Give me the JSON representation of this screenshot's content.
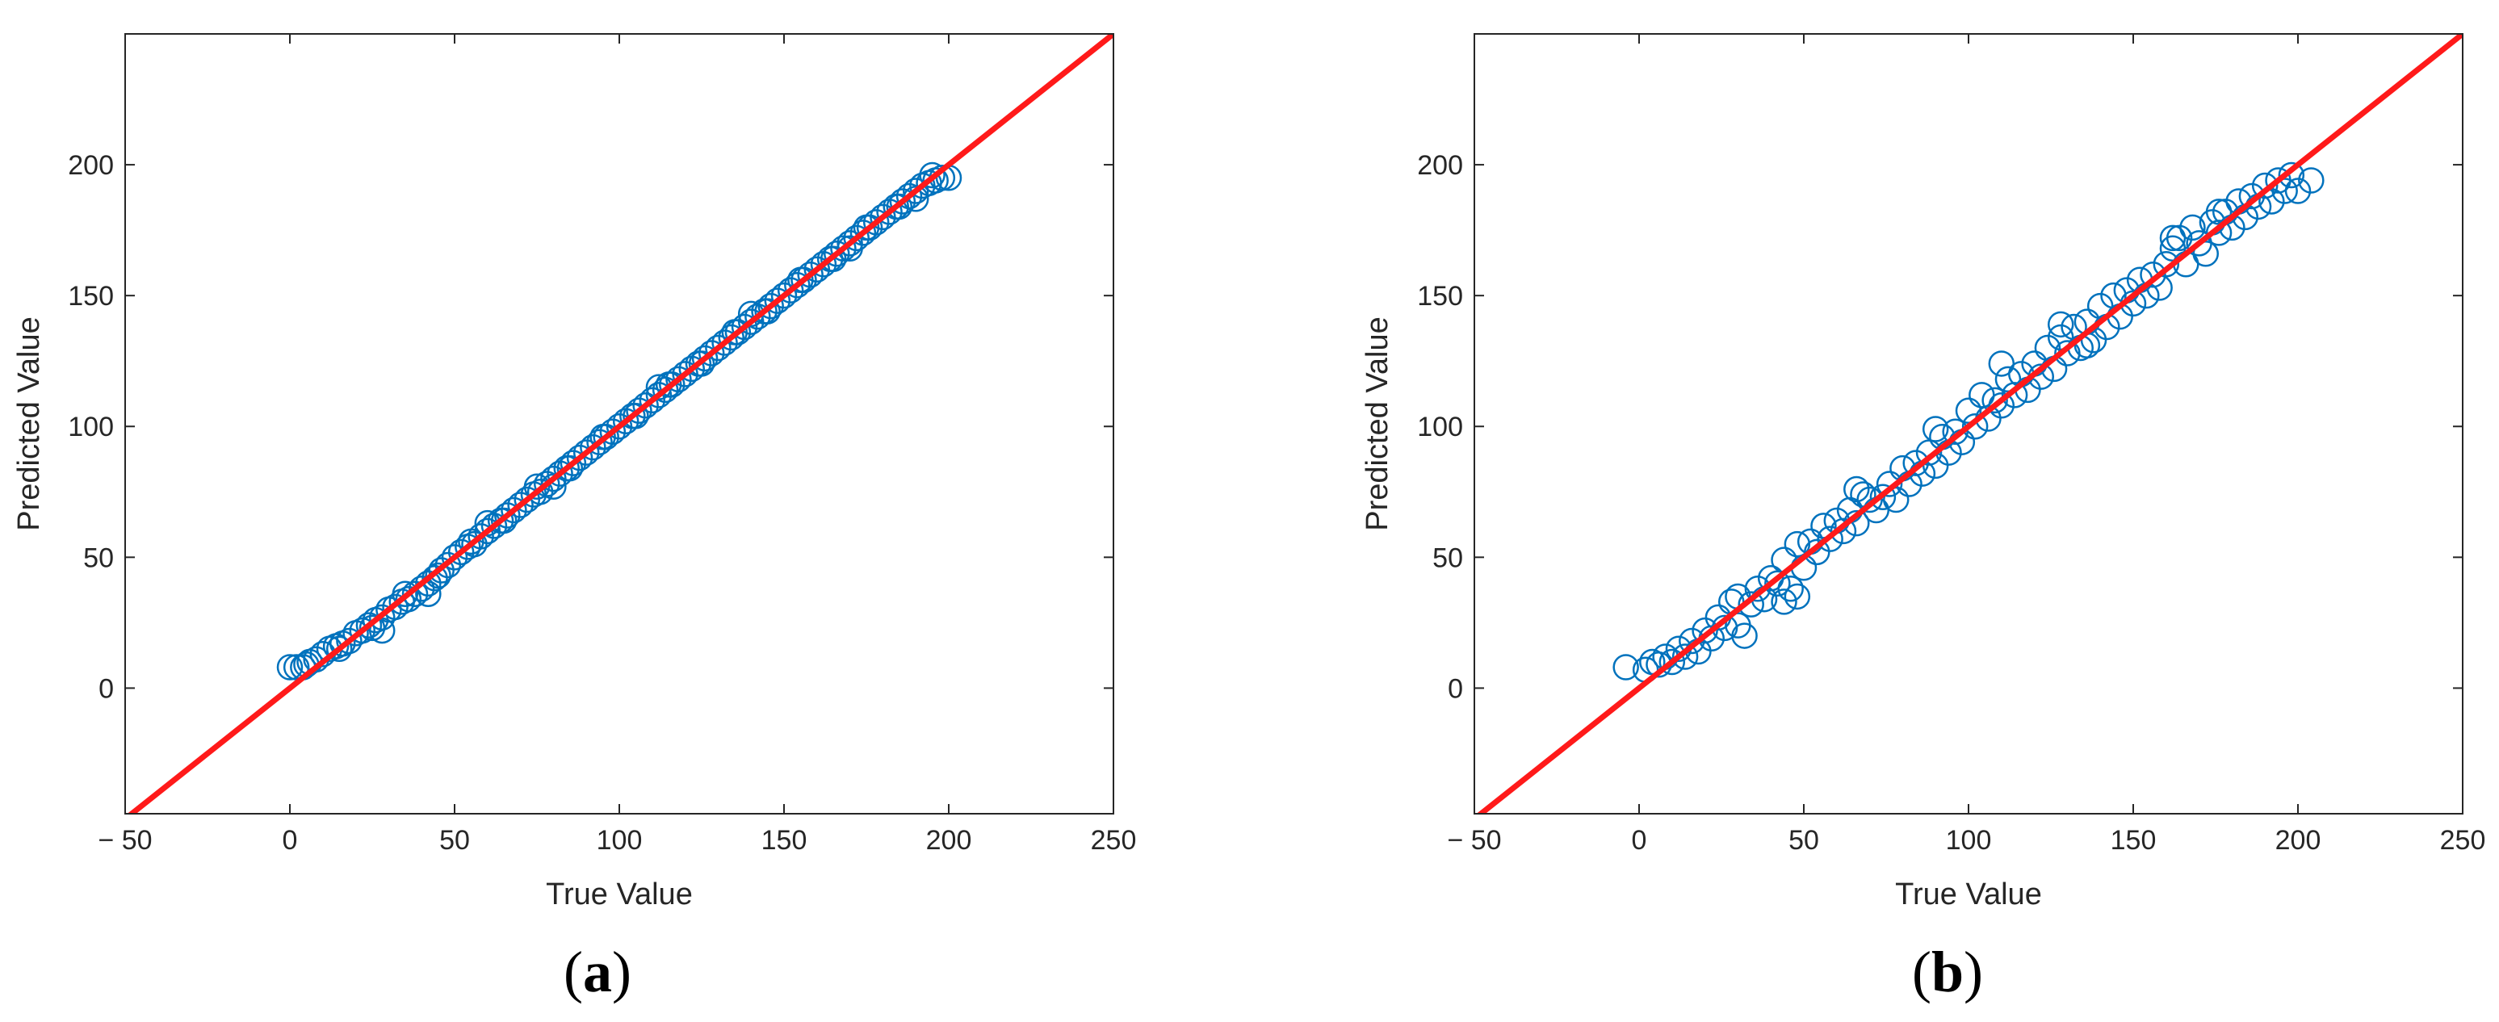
{
  "chart_data": [
    {
      "type": "scatter",
      "panel_label": {
        "open": "(",
        "letter": "a",
        "close": ")"
      },
      "xlabel": "True Value",
      "ylabel": "Predicted Value",
      "xlim": [
        -50,
        250
      ],
      "ylim": [
        -48,
        250
      ],
      "xticks": [
        -50,
        0,
        50,
        100,
        150,
        200,
        250
      ],
      "xtick_labels": [
        "− 50",
        "0",
        "50",
        "100",
        "150",
        "200",
        "250"
      ],
      "yticks": [
        0,
        50,
        100,
        150,
        200
      ],
      "ytick_labels": [
        "0",
        "50",
        "100",
        "150",
        "200"
      ],
      "grid": false,
      "reference_line": {
        "x": [
          -50,
          250
        ],
        "y": [
          -50,
          250
        ],
        "color": "#ff1a1a"
      },
      "marker_color": "#0072bd",
      "points": [
        [
          0,
          8
        ],
        [
          2,
          8
        ],
        [
          4,
          8
        ],
        [
          6,
          10
        ],
        [
          8,
          11
        ],
        [
          10,
          13
        ],
        [
          12,
          15
        ],
        [
          14,
          16
        ],
        [
          16,
          17
        ],
        [
          18,
          18
        ],
        [
          20,
          21
        ],
        [
          22,
          22
        ],
        [
          24,
          24
        ],
        [
          26,
          26
        ],
        [
          28,
          27
        ],
        [
          30,
          30
        ],
        [
          32,
          31
        ],
        [
          34,
          33
        ],
        [
          36,
          34
        ],
        [
          38,
          36
        ],
        [
          40,
          38
        ],
        [
          42,
          40
        ],
        [
          44,
          42
        ],
        [
          46,
          45
        ],
        [
          48,
          47
        ],
        [
          50,
          50
        ],
        [
          52,
          52
        ],
        [
          54,
          54
        ],
        [
          56,
          55
        ],
        [
          58,
          58
        ],
        [
          60,
          60
        ],
        [
          62,
          62
        ],
        [
          64,
          64
        ],
        [
          66,
          66
        ],
        [
          68,
          68
        ],
        [
          70,
          70
        ],
        [
          72,
          72
        ],
        [
          74,
          74
        ],
        [
          76,
          75
        ],
        [
          78,
          78
        ],
        [
          80,
          80
        ],
        [
          82,
          82
        ],
        [
          84,
          84
        ],
        [
          86,
          86
        ],
        [
          88,
          88
        ],
        [
          90,
          90
        ],
        [
          92,
          92
        ],
        [
          94,
          94
        ],
        [
          96,
          96
        ],
        [
          98,
          98
        ],
        [
          100,
          100
        ],
        [
          102,
          102
        ],
        [
          104,
          104
        ],
        [
          106,
          106
        ],
        [
          108,
          108
        ],
        [
          110,
          110
        ],
        [
          112,
          112
        ],
        [
          114,
          114
        ],
        [
          116,
          116
        ],
        [
          118,
          118
        ],
        [
          120,
          120
        ],
        [
          122,
          122
        ],
        [
          124,
          124
        ],
        [
          126,
          126
        ],
        [
          128,
          128
        ],
        [
          130,
          130
        ],
        [
          132,
          132
        ],
        [
          134,
          134
        ],
        [
          136,
          136
        ],
        [
          138,
          138
        ],
        [
          140,
          140
        ],
        [
          142,
          142
        ],
        [
          144,
          144
        ],
        [
          146,
          146
        ],
        [
          148,
          148
        ],
        [
          150,
          150
        ],
        [
          152,
          152
        ],
        [
          154,
          154
        ],
        [
          156,
          156
        ],
        [
          158,
          158
        ],
        [
          160,
          160
        ],
        [
          162,
          162
        ],
        [
          164,
          164
        ],
        [
          166,
          166
        ],
        [
          168,
          168
        ],
        [
          170,
          170
        ],
        [
          172,
          172
        ],
        [
          174,
          174
        ],
        [
          176,
          176
        ],
        [
          178,
          178
        ],
        [
          180,
          180
        ],
        [
          182,
          182
        ],
        [
          184,
          184
        ],
        [
          186,
          186
        ],
        [
          188,
          188
        ],
        [
          190,
          190
        ],
        [
          192,
          192
        ],
        [
          194,
          193
        ],
        [
          196,
          194
        ],
        [
          198,
          195
        ],
        [
          200,
          195
        ],
        [
          5,
          9
        ],
        [
          15,
          15
        ],
        [
          25,
          23
        ],
        [
          35,
          36
        ],
        [
          45,
          43
        ],
        [
          55,
          56
        ],
        [
          65,
          64
        ],
        [
          75,
          77
        ],
        [
          85,
          84
        ],
        [
          95,
          96
        ],
        [
          105,
          104
        ],
        [
          115,
          116
        ],
        [
          125,
          124
        ],
        [
          135,
          136
        ],
        [
          145,
          144
        ],
        [
          155,
          156
        ],
        [
          165,
          164
        ],
        [
          175,
          176
        ],
        [
          185,
          184
        ],
        [
          195,
          196
        ],
        [
          28,
          22
        ],
        [
          42,
          36
        ],
        [
          60,
          63
        ],
        [
          80,
          77
        ],
        [
          112,
          115
        ],
        [
          140,
          143
        ],
        [
          170,
          168
        ],
        [
          190,
          187
        ]
      ]
    },
    {
      "type": "scatter",
      "panel_label": {
        "open": "(",
        "letter": "b",
        "close": ")"
      },
      "xlabel": "True Value",
      "ylabel": "Predicted Value",
      "xlim": [
        -50,
        250
      ],
      "ylim": [
        -48,
        250
      ],
      "xticks": [
        -50,
        0,
        50,
        100,
        150,
        200,
        250
      ],
      "xtick_labels": [
        "− 50",
        "0",
        "50",
        "100",
        "150",
        "200",
        "250"
      ],
      "yticks": [
        0,
        50,
        100,
        150,
        200
      ],
      "ytick_labels": [
        "0",
        "50",
        "100",
        "150",
        "200"
      ],
      "grid": false,
      "reference_line": {
        "x": [
          -50,
          250
        ],
        "y": [
          -50,
          250
        ],
        "color": "#ff1a1a"
      },
      "marker_color": "#0072bd",
      "points": [
        [
          -4,
          8
        ],
        [
          2,
          7
        ],
        [
          4,
          10
        ],
        [
          6,
          9
        ],
        [
          8,
          12
        ],
        [
          10,
          10
        ],
        [
          12,
          15
        ],
        [
          14,
          12
        ],
        [
          16,
          18
        ],
        [
          18,
          14
        ],
        [
          20,
          22
        ],
        [
          22,
          19
        ],
        [
          24,
          27
        ],
        [
          26,
          23
        ],
        [
          28,
          33
        ],
        [
          30,
          24
        ],
        [
          32,
          20
        ],
        [
          34,
          32
        ],
        [
          36,
          38
        ],
        [
          38,
          34
        ],
        [
          40,
          42
        ],
        [
          42,
          40
        ],
        [
          44,
          49
        ],
        [
          46,
          38
        ],
        [
          48,
          55
        ],
        [
          50,
          46
        ],
        [
          52,
          56
        ],
        [
          54,
          52
        ],
        [
          56,
          62
        ],
        [
          58,
          57
        ],
        [
          60,
          64
        ],
        [
          62,
          60
        ],
        [
          64,
          68
        ],
        [
          66,
          63
        ],
        [
          68,
          74
        ],
        [
          70,
          72
        ],
        [
          72,
          68
        ],
        [
          74,
          73
        ],
        [
          76,
          78
        ],
        [
          78,
          72
        ],
        [
          80,
          84
        ],
        [
          82,
          78
        ],
        [
          84,
          86
        ],
        [
          86,
          82
        ],
        [
          88,
          90
        ],
        [
          90,
          85
        ],
        [
          92,
          96
        ],
        [
          94,
          90
        ],
        [
          96,
          98
        ],
        [
          98,
          94
        ],
        [
          100,
          106
        ],
        [
          102,
          100
        ],
        [
          104,
          112
        ],
        [
          106,
          103
        ],
        [
          108,
          110
        ],
        [
          110,
          108
        ],
        [
          112,
          118
        ],
        [
          114,
          112
        ],
        [
          116,
          120
        ],
        [
          118,
          114
        ],
        [
          120,
          124
        ],
        [
          122,
          119
        ],
        [
          124,
          130
        ],
        [
          126,
          122
        ],
        [
          128,
          134
        ],
        [
          130,
          128
        ],
        [
          132,
          138
        ],
        [
          134,
          130
        ],
        [
          136,
          140
        ],
        [
          138,
          133
        ],
        [
          140,
          146
        ],
        [
          142,
          138
        ],
        [
          144,
          150
        ],
        [
          146,
          142
        ],
        [
          148,
          152
        ],
        [
          150,
          147
        ],
        [
          152,
          156
        ],
        [
          154,
          150
        ],
        [
          156,
          158
        ],
        [
          158,
          153
        ],
        [
          160,
          162
        ],
        [
          162,
          168
        ],
        [
          164,
          172
        ],
        [
          166,
          162
        ],
        [
          168,
          176
        ],
        [
          170,
          170
        ],
        [
          172,
          166
        ],
        [
          174,
          178
        ],
        [
          176,
          174
        ],
        [
          178,
          182
        ],
        [
          180,
          176
        ],
        [
          182,
          186
        ],
        [
          184,
          180
        ],
        [
          186,
          188
        ],
        [
          188,
          184
        ],
        [
          190,
          192
        ],
        [
          192,
          186
        ],
        [
          194,
          194
        ],
        [
          196,
          190
        ],
        [
          198,
          196
        ],
        [
          200,
          190
        ],
        [
          204,
          194
        ],
        [
          30,
          35
        ],
        [
          44,
          33
        ],
        [
          48,
          35
        ],
        [
          66,
          76
        ],
        [
          90,
          99
        ],
        [
          110,
          124
        ],
        [
          128,
          139
        ],
        [
          136,
          131
        ],
        [
          162,
          172
        ],
        [
          176,
          182
        ]
      ]
    }
  ]
}
